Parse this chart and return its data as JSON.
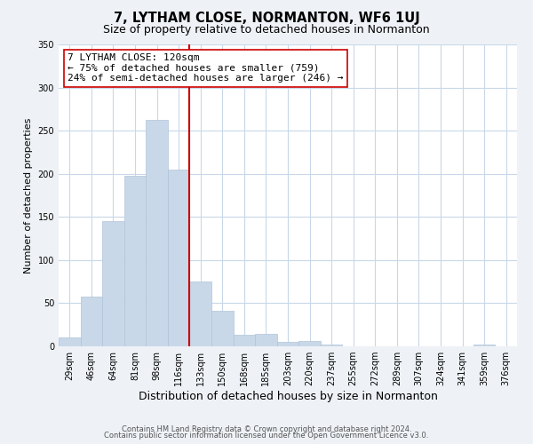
{
  "title": "7, LYTHAM CLOSE, NORMANTON, WF6 1UJ",
  "subtitle": "Size of property relative to detached houses in Normanton",
  "xlabel": "Distribution of detached houses by size in Normanton",
  "ylabel": "Number of detached properties",
  "bar_labels": [
    "29sqm",
    "46sqm",
    "64sqm",
    "81sqm",
    "98sqm",
    "116sqm",
    "133sqm",
    "150sqm",
    "168sqm",
    "185sqm",
    "203sqm",
    "220sqm",
    "237sqm",
    "255sqm",
    "272sqm",
    "289sqm",
    "307sqm",
    "324sqm",
    "341sqm",
    "359sqm",
    "376sqm"
  ],
  "bar_values": [
    10,
    58,
    145,
    198,
    262,
    205,
    75,
    41,
    13,
    14,
    5,
    6,
    2,
    0,
    0,
    0,
    0,
    0,
    0,
    2,
    0
  ],
  "bar_color": "#c8d8e8",
  "bar_edge_color": "#b0c4d8",
  "vline_x_index": 5,
  "vline_color": "#cc0000",
  "ylim": [
    0,
    350
  ],
  "yticks": [
    0,
    50,
    100,
    150,
    200,
    250,
    300,
    350
  ],
  "annotation_title": "7 LYTHAM CLOSE: 120sqm",
  "annotation_line1": "← 75% of detached houses are smaller (759)",
  "annotation_line2": "24% of semi-detached houses are larger (246) →",
  "footer_line1": "Contains HM Land Registry data © Crown copyright and database right 2024.",
  "footer_line2": "Contains public sector information licensed under the Open Government Licence v3.0.",
  "background_color": "#eef2f6",
  "plot_bg_color": "#ffffff",
  "grid_color": "#c8d8e8",
  "title_fontsize": 10.5,
  "subtitle_fontsize": 9,
  "xlabel_fontsize": 9,
  "ylabel_fontsize": 8,
  "tick_fontsize": 7,
  "annotation_fontsize": 8,
  "footer_fontsize": 6,
  "annotation_box_edgecolor": "#cc0000",
  "annotation_box_facecolor": "#ffffff"
}
